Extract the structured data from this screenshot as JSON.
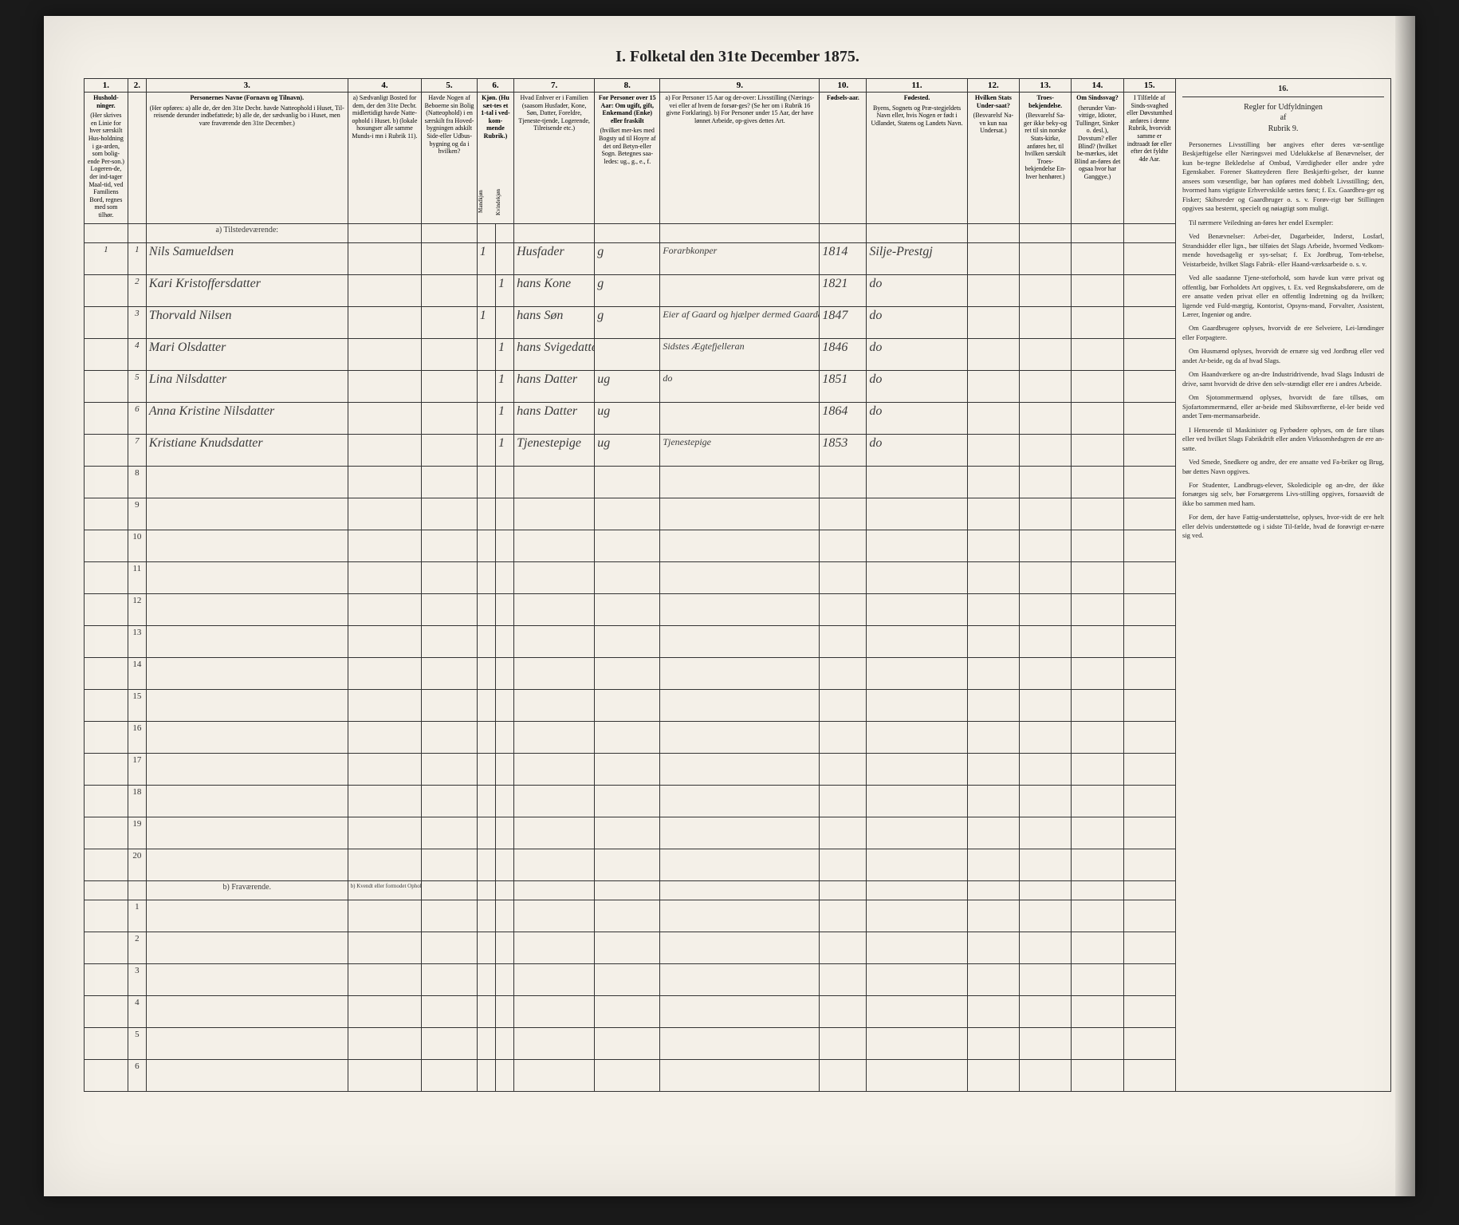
{
  "title": "I. Folketal den 31te December 1875.",
  "columns": {
    "nums": [
      "1.",
      "2.",
      "3.",
      "4.",
      "5.",
      "6.",
      "7.",
      "8.",
      "9.",
      "10.",
      "11.",
      "12.",
      "13.",
      "14.",
      "15."
    ],
    "headers": [
      {
        "title": "Hushold-\nninger.",
        "sub": "(Her skrives en Linie for hver særskilt Hus-holdning i ga-arden, som bolig-ende Per-son.) Logeren-de, der ind-tager Maal-tid, ved Familiens Bord, regnes med som tilhør."
      },
      {
        "title": "",
        "sub": ""
      },
      {
        "title": "Personernes Navne (Fornavn og Tilnavn).",
        "sub": "(Her opføres:\na) alle de, der den 31te Decbr. havde Natteophold i Huset, Til-reisende derunder indbefattede;\nb) alle de, der sædvanlig bo i Huset, men vare fraværende den 31te December.)"
      },
      {
        "title": "",
        "sub": "a) Sædvanligt Bosted for dem, der den 31te Decbr. midlertidigt havde Natte-ophold i Huset.\nb) (lokale hosungser alle samme Munds-i mn i Rubrik 11)."
      },
      {
        "title": "",
        "sub": "Havde Nogen af Beboerne sin Bolig (Natteophold) i en særskilt fra Hoved-bygningen adskilt Side-eller Udbus-bygning og da i hvilken?"
      },
      {
        "title": "Kjøn. (Hu sæt-tes et 1-tal i ved-kom-mende Rubrik.)",
        "sub": ""
      },
      {
        "title": "",
        "sub": "Hvad Enhver er i Familien (saasom Husfader, Kone, Søn, Datter, Foreldre, Tjeneste-tjende, Logerende, Tilreisende etc.)"
      },
      {
        "title": "For Personer over 15 Aar: Om ugift, gift, Enkemand (Enke) eller fraskilt",
        "sub": "(hvilket mer-kes med Bogsty ud til Hoyre af det ord Betyn-eller Sogn. Betegnes saa-ledes: ug., g., e., f."
      },
      {
        "title": "",
        "sub": "a) For Personer 15 Aar og der-over: Livsstilling (Nærings-vei eller af hvem de forsør-ges? (Se her om i Rubrik 16 givne Forklaring).\nb) For Personer under 15 Aar, der have lønnet Arbeide, op-gives dettes Art."
      },
      {
        "title": "Fødsels-aar.",
        "sub": ""
      },
      {
        "title": "Fødested.",
        "sub": "Byens, Sognets og Præ-stegjeldets Navn eller, hvis Nogen er født i Udlandet, Statens og Landets Navn."
      },
      {
        "title": "Hvilken Stats Under-saat?",
        "sub": "(Besvarelsf Na-vn kun naa Undersat.)"
      },
      {
        "title": "Troes-bekjendelse.",
        "sub": "(Besvarelsf Sa-ger ikke beky-og ret til sin norske Stats-kirke, anføres her, til hvilken særskilt Troes-bekjendelse En-hver henhører.)"
      },
      {
        "title": "Om Sindssvag?",
        "sub": "(herunder Van-vittige, Idioter, Tullinger, Sinker o. desl.), Dovstum? eller Blind? (hvilket be-mærkes, idet Blind an-føres det ogsaa hvor har Ganggye.)"
      },
      {
        "title": "I Tilfælde af Sinds-svaghed eller Døvstumhed anføres i denne Rubrik, hvorvidt samme er indtraadt før eller efter det fyldte 4de Aar.",
        "sub": ""
      }
    ],
    "col6sub": [
      "Mandkjøn",
      "Kvindekjøn"
    ]
  },
  "section_a": "a) Tilstedeværende:",
  "section_b": "b) Fraværende.",
  "section_b_col4": "b) Kvendt eller formodet Opholds-sted.",
  "rows_a": [
    {
      "n1": "1",
      "n2": "1",
      "name": "Nils Samueldsen",
      "c4": "",
      "c5": "",
      "m": "1",
      "k": "",
      "fam": "Husfader",
      "stat": "g",
      "occ": "Forarbkonper",
      "year": "1814",
      "place": "Silje-Prestgj",
      "u": "",
      "t": "",
      "s": "",
      "x": ""
    },
    {
      "n1": "",
      "n2": "2",
      "name": "Kari Kristoffersdatter",
      "c4": "",
      "c5": "",
      "m": "",
      "k": "1",
      "fam": "hans Kone",
      "stat": "g",
      "occ": "",
      "year": "1821",
      "place": "do",
      "u": "",
      "t": "",
      "s": "",
      "x": ""
    },
    {
      "n1": "",
      "n2": "3",
      "name": "Thorvald Nilsen",
      "c4": "",
      "c5": "",
      "m": "1",
      "k": "",
      "fam": "hans Søn",
      "stat": "g",
      "occ": "Eier af Gaard og hjælper dermed Gaardarbeidet",
      "year": "1847",
      "place": "do",
      "u": "",
      "t": "",
      "s": "",
      "x": ""
    },
    {
      "n1": "",
      "n2": "4",
      "name": "Mari Olsdatter",
      "c4": "",
      "c5": "",
      "m": "",
      "k": "1",
      "fam": "hans Svigedatter",
      "stat": "",
      "occ": "Sidstes Ægtefjelleran",
      "year": "1846",
      "place": "do",
      "u": "",
      "t": "",
      "s": "",
      "x": ""
    },
    {
      "n1": "",
      "n2": "5",
      "name": "Lina Nilsdatter",
      "c4": "",
      "c5": "",
      "m": "",
      "k": "1",
      "fam": "hans Datter",
      "stat": "ug",
      "occ": "do",
      "year": "1851",
      "place": "do",
      "u": "",
      "t": "",
      "s": "",
      "x": ""
    },
    {
      "n1": "",
      "n2": "6",
      "name": "Anna Kristine Nilsdatter",
      "c4": "",
      "c5": "",
      "m": "",
      "k": "1",
      "fam": "hans Datter",
      "stat": "ug",
      "occ": "",
      "year": "1864",
      "place": "do",
      "u": "",
      "t": "",
      "s": "",
      "x": ""
    },
    {
      "n1": "",
      "n2": "7",
      "name": "Kristiane Knudsdatter",
      "c4": "",
      "c5": "",
      "m": "",
      "k": "1",
      "fam": "Tjenestepige",
      "stat": "ug",
      "occ": "Tjenestepige",
      "year": "1853",
      "place": "do",
      "u": "",
      "t": "",
      "s": "",
      "x": ""
    }
  ],
  "empty_a": [
    "8",
    "9",
    "10",
    "11",
    "12",
    "13",
    "14",
    "15",
    "16",
    "17",
    "18",
    "19",
    "20"
  ],
  "empty_b": [
    "1",
    "2",
    "3",
    "4",
    "5",
    "6"
  ],
  "rules": {
    "heading_num": "16.",
    "heading": "Regler for Udfyldningen\naf\nRubrik 9.",
    "paras": [
      "Personernes Livsstilling bør angives efter deres væ-sentlige Beskjæftigelse eller Næringsvei med Udelukkelse af Benævnelser, der kun be-tegne Bekledelse af Ombud, Værdigheder eller andre ydre Egenskaber. Forener Skatteyderen flere Beskjæfti-gelser, der kunne ansees som væsentlige, bør han opføres med dobbelt Livsstilling; den, hvormed hans vigtigste Erhvervskilde sættes først; f. Ex. Gaardbru-ger og Fisker; Skibsreder og Gaardbruger o. s. v. Forøv-rigt bør Stillingen opgives saa bestemt, specielt og nøiagtigt som muligt.",
      "Til nærmere Veiledning an-føres her endel Exempler:",
      "Ved Benævnelser: Arbei-der, Dagarbeider, Inderst, Losfarl, Strandsidder eller lign., bør tilføies det Slags Arbeide, hvormed Vedkom-mende hovedsagelig er sys-selsat; f. Ex Jordbrug, Tom-tebelse, Veistarbeide, hvilket Slags Fabrik- eller Haand-værksarbeide o. s. v.",
      "Ved alle saadanne Tjene-steforhold, som havde kun være privat og offentlig, bør Forholdets Art opgives, t. Ex. ved Regnskabsførere, om de ere ansatte veden privat eller en offentlig Indretning og da hvilken; ligende ved Fuld-mægtig, Kontorist, Opsyns-mand, Forvalter, Assistent, Lærer, Ingeniør og andre.",
      "Om Gaardbrugere oplyses, hvorvidt de ere Selveiere, Lei-lændinger eller Forpagtere.",
      "Om Husmænd oplyses, hvorvidt de ernære sig ved Jordbrug eller ved andet Ar-beide, og da af hvad Slags.",
      "Om Haandværkere og an-dre Industridrivende, hvad Slags Industri de drive, samt hvorvidt de drive den selv-stændigt eller ere i andres Arbeide.",
      "Om Sjotommermænd oplyses, hvorvidt de fare tillsøs, om Sjofartommermænd, eller ar-beide med Skibsværfterne, el-ler beide ved andet Tøm-mermansarbeide.",
      "I Henseende til Maskinister og Fyrbødere oplyses, om de fare tilsøs eller ved hvilket Slags Fabrikdrift eller anden Virksomhedsgren de ere an-satte.",
      "Ved Smede, Snedkere og andre, der ere ansatte ved Fa-briker og Brug, bør dettes Navn opgives.",
      "For Studenter, Landbrugs-elever, Skolediciple og an-dre, der ikke forsørges sig selv, bør Forsørgerens Livs-stilling opgives, forsaavidt de ikke bo sammen med ham.",
      "For dem, der have Fattig-understøttelse, oplyses, hvor-vidt de ere helt eller delvis understøttede og i sidste Til-fælde, hvad de forøvrigt er-nære sig ved."
    ]
  }
}
